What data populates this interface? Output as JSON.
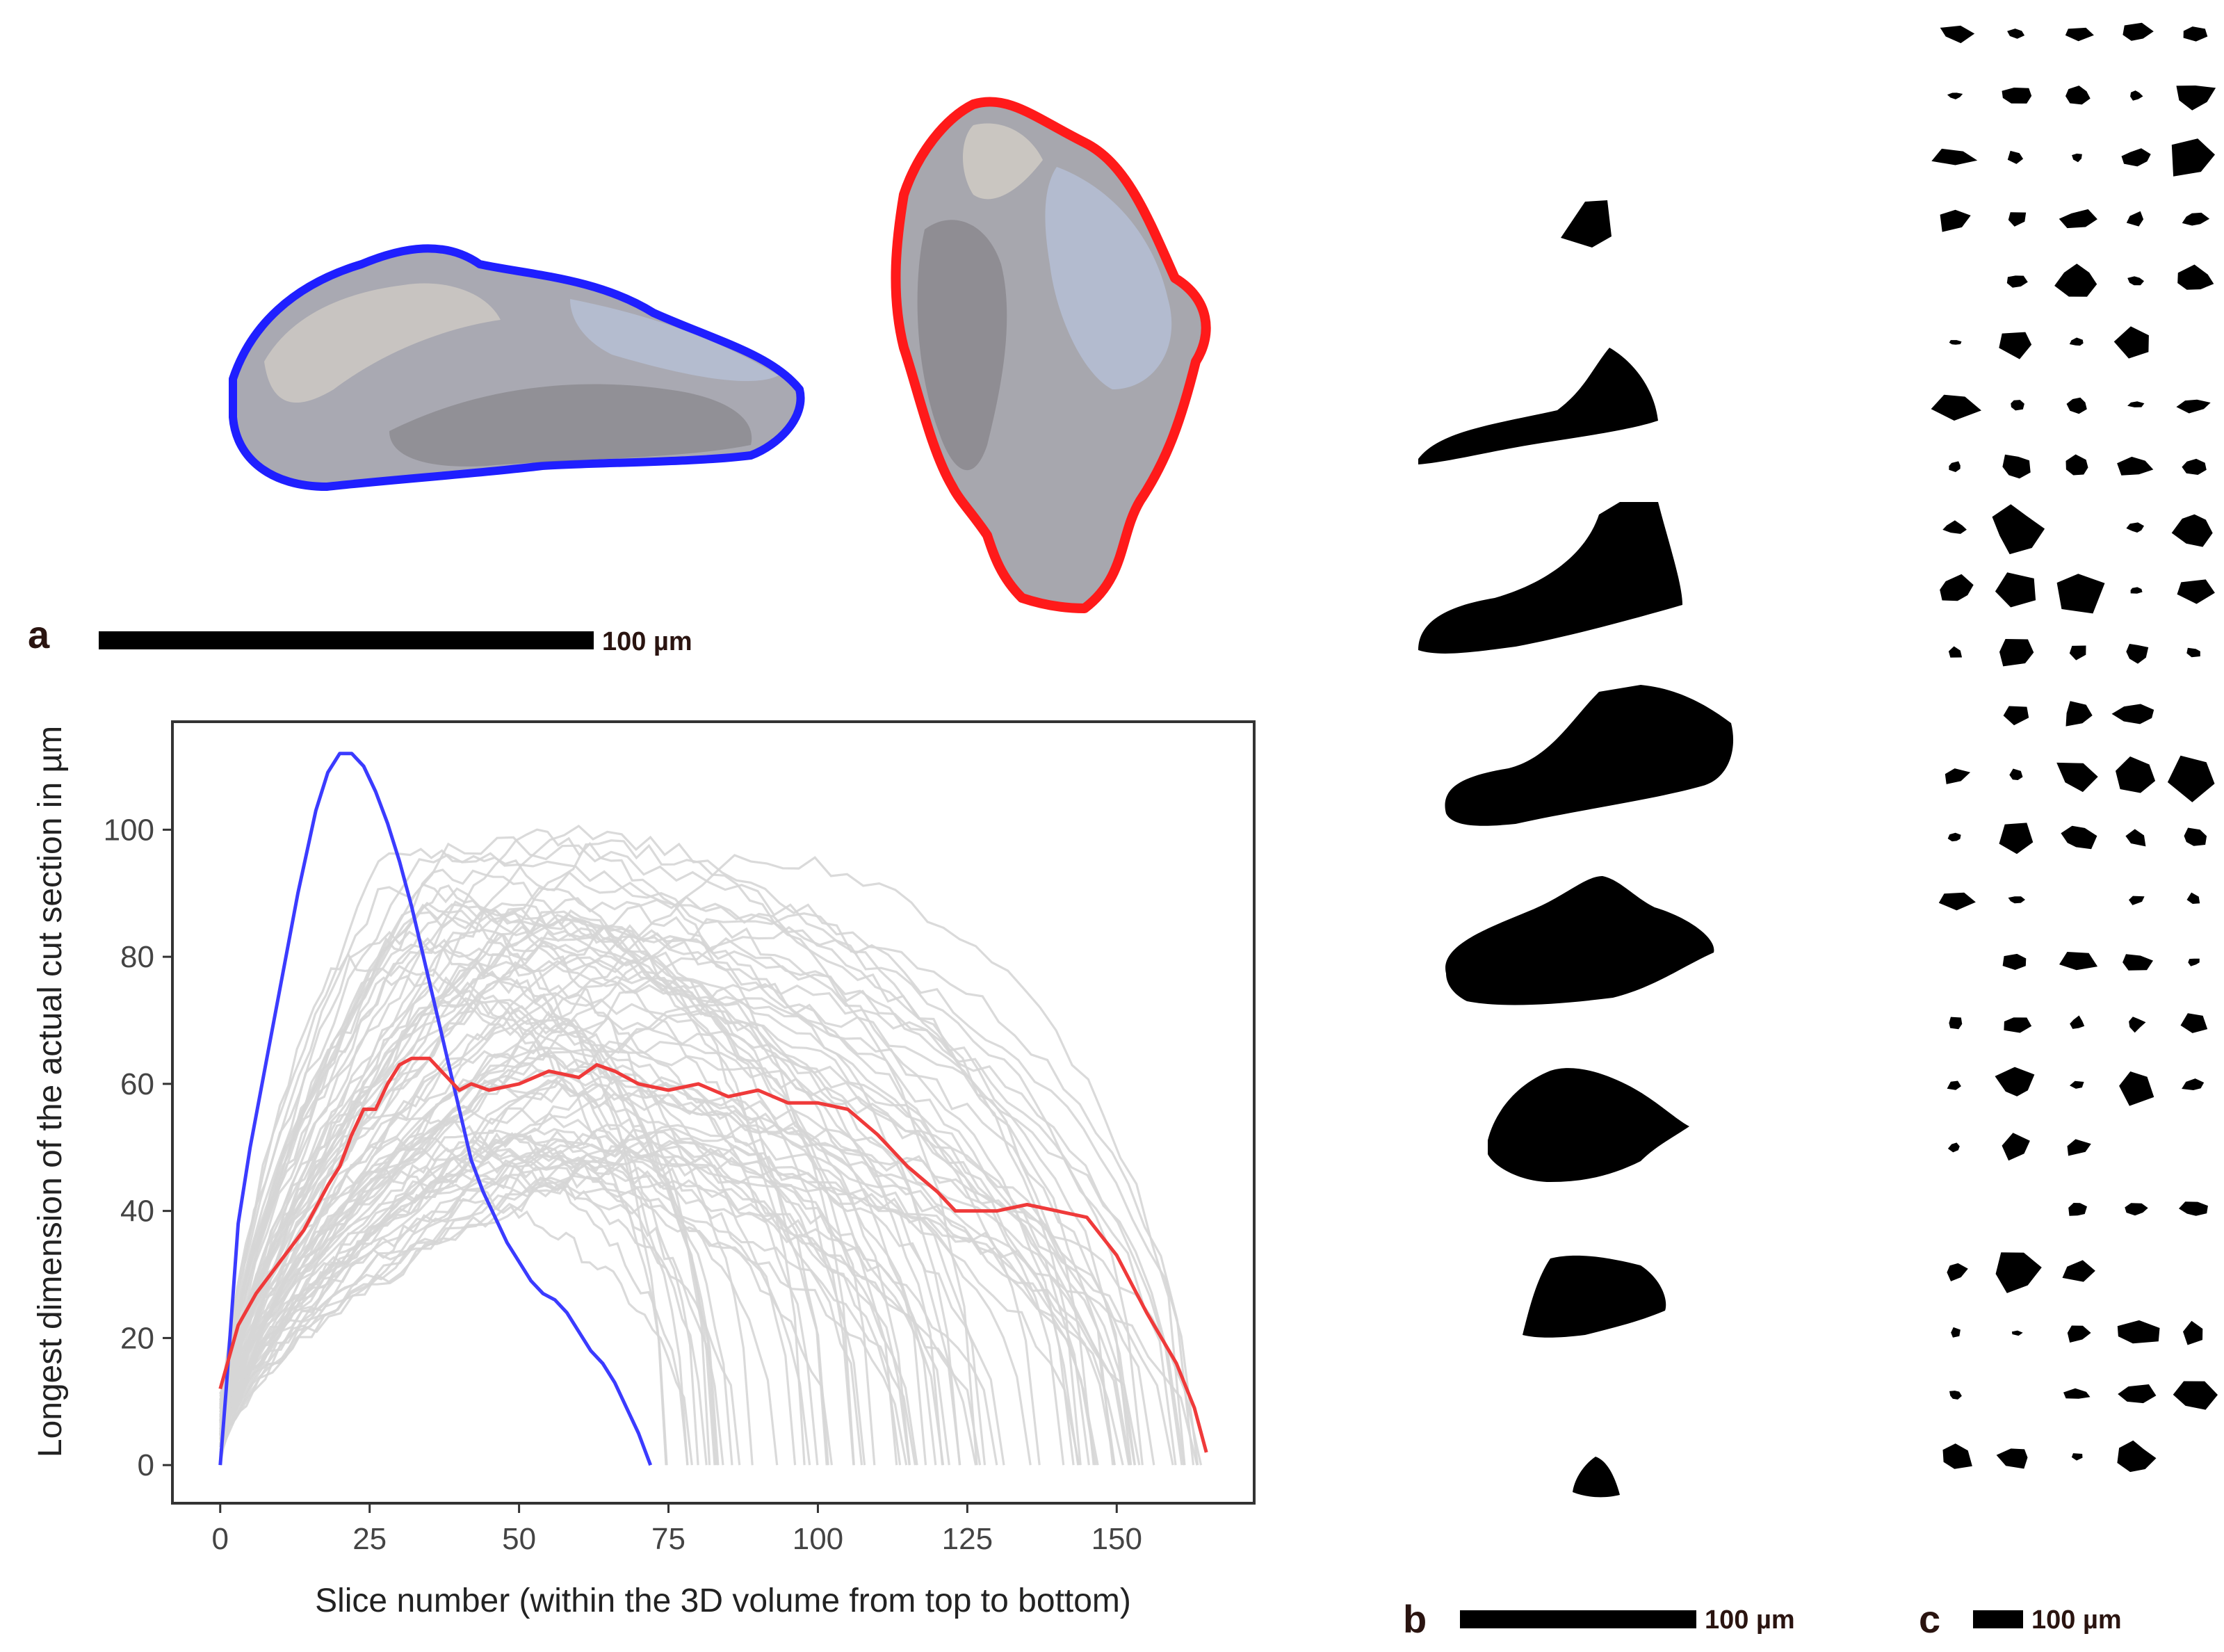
{
  "panels": {
    "a": {
      "letter": "a",
      "scale_bar_label": "100 µm",
      "particle_views": [
        {
          "name": "elongated view",
          "outline_color": "#1f1fff"
        },
        {
          "name": "upright view",
          "outline_color": "#ff1a1a"
        }
      ]
    },
    "b": {
      "letter": "b",
      "scale_bar_label": "100 µm"
    },
    "c": {
      "letter": "c",
      "scale_bar_label": "100 µm"
    }
  },
  "chart_data": {
    "type": "line",
    "xlabel": "Slice number (within the 3D volume from top to bottom)",
    "ylabel": "Longest dimension of the actual cut section in µm",
    "xlim": [
      -8,
      173
    ],
    "ylim": [
      -6,
      117
    ],
    "xticks": [
      "0",
      "25",
      "50",
      "75",
      "100",
      "125",
      "150"
    ],
    "yticks": [
      "0",
      "20",
      "40",
      "60",
      "80",
      "100"
    ],
    "grid": false,
    "legend": "none",
    "background_series_color": "#d6d6d6",
    "background_series_count": 80,
    "series": [
      {
        "color": "#3b3bff",
        "x": [
          0,
          1,
          2,
          3,
          5,
          8,
          10,
          13,
          16,
          18,
          20,
          22,
          24,
          26,
          28,
          30,
          32,
          34,
          36,
          38,
          40,
          42,
          44,
          46,
          48,
          50,
          52,
          54,
          56,
          58,
          60,
          62,
          64,
          66,
          68,
          70,
          72
        ],
        "y": [
          0,
          12,
          25,
          38,
          50,
          65,
          75,
          90,
          103,
          109,
          112,
          112,
          110,
          106,
          101,
          95,
          88,
          80,
          72,
          64,
          56,
          48,
          43,
          39,
          35,
          32,
          29,
          27,
          26,
          24,
          21,
          18,
          16,
          13,
          9,
          5,
          0
        ]
      },
      {
        "color": "#ef3a3a",
        "x": [
          0,
          3,
          6,
          10,
          14,
          18,
          20,
          22,
          24,
          26,
          28,
          30,
          32,
          35,
          38,
          40,
          42,
          45,
          50,
          55,
          60,
          63,
          66,
          70,
          75,
          80,
          85,
          90,
          95,
          100,
          105,
          110,
          115,
          120,
          123,
          126,
          130,
          135,
          140,
          145,
          150,
          155,
          160,
          163,
          165
        ],
        "y": [
          12,
          22,
          27,
          32,
          37,
          44,
          47,
          52,
          56,
          56,
          60,
          63,
          64,
          64,
          61,
          59,
          60,
          59,
          60,
          62,
          61,
          63,
          62,
          60,
          59,
          60,
          58,
          59,
          57,
          57,
          56,
          52,
          47,
          43,
          40,
          40,
          40,
          41,
          40,
          39,
          33,
          24,
          16,
          9,
          2
        ]
      }
    ]
  }
}
